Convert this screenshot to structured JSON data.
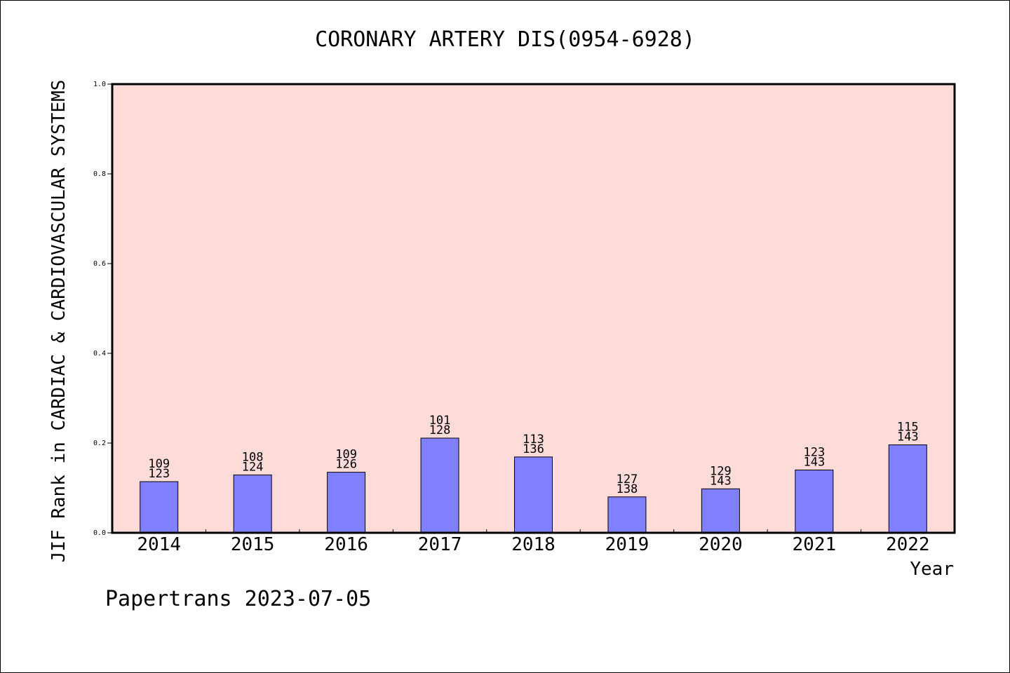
{
  "chart_data": {
    "type": "bar",
    "title": "CORONARY ARTERY DIS(0954-6928)",
    "ylabel": "JIF Rank in CARDIAC & CARDIOVASCULAR SYSTEMS",
    "xlabel": "Year",
    "footer": "Papertrans 2023-07-05",
    "ylim": [
      0,
      1.0
    ],
    "yticks": [
      "0.0",
      "0.2",
      "0.4",
      "0.6",
      "0.8",
      "1.0"
    ],
    "grid": false,
    "colors": {
      "plot_bg": "#fddbd8",
      "bar": "#8080ff",
      "bar_edge": "#000000"
    },
    "categories": [
      "2014",
      "2015",
      "2016",
      "2017",
      "2018",
      "2019",
      "2020",
      "2021",
      "2022"
    ],
    "values": [
      0.114,
      0.129,
      0.135,
      0.211,
      0.169,
      0.08,
      0.098,
      0.14,
      0.196
    ],
    "rank_labels": [
      "109",
      "108",
      "109",
      "101",
      "113",
      "127",
      "129",
      "123",
      "115"
    ],
    "total_labels": [
      "123",
      "124",
      "126",
      "128",
      "136",
      "138",
      "143",
      "143",
      "143"
    ]
  }
}
